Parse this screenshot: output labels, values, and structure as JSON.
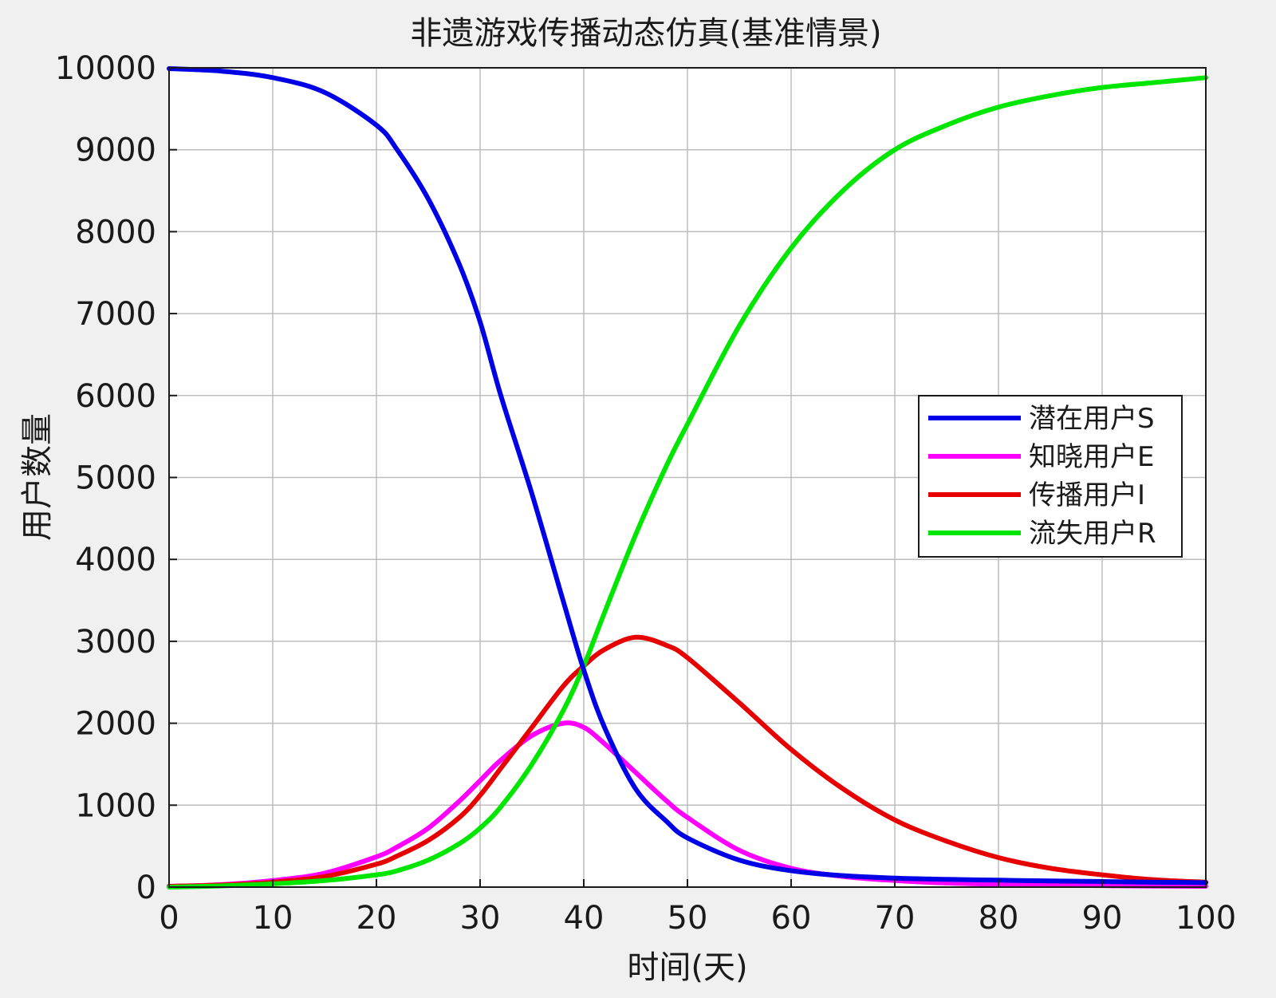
{
  "chart_data": {
    "type": "line",
    "title": "非遗游戏传播动态仿真(基准情景)",
    "xlabel": "时间(天)",
    "ylabel": "用户数量",
    "xlim": [
      0,
      100
    ],
    "ylim": [
      0,
      10000
    ],
    "xticks": [
      0,
      10,
      20,
      30,
      40,
      50,
      60,
      70,
      80,
      90,
      100
    ],
    "yticks": [
      0,
      1000,
      2000,
      3000,
      4000,
      5000,
      6000,
      7000,
      8000,
      9000,
      10000
    ],
    "grid": true,
    "legend_position": "right",
    "x": [
      0,
      5,
      10,
      15,
      20,
      22,
      25,
      28,
      30,
      32,
      35,
      38,
      40,
      42,
      45,
      48,
      50,
      55,
      60,
      65,
      70,
      75,
      80,
      85,
      90,
      95,
      100
    ],
    "series": [
      {
        "name": "潜在用户S",
        "color": "#0000e6",
        "values": [
          9990,
          9960,
          9880,
          9700,
          9300,
          9000,
          8400,
          7600,
          6900,
          6000,
          4800,
          3500,
          2650,
          1950,
          1200,
          800,
          600,
          330,
          200,
          140,
          110,
          95,
          85,
          75,
          68,
          60,
          55
        ]
      },
      {
        "name": "知晓用户E",
        "color": "#ff00ff",
        "values": [
          10,
          30,
          80,
          170,
          370,
          490,
          720,
          1050,
          1300,
          1550,
          1850,
          2000,
          1950,
          1750,
          1400,
          1050,
          850,
          450,
          230,
          130,
          80,
          50,
          35,
          25,
          18,
          12,
          10
        ]
      },
      {
        "name": "传播用户I",
        "color": "#e60000",
        "values": [
          10,
          25,
          60,
          130,
          280,
          380,
          570,
          850,
          1120,
          1450,
          1950,
          2450,
          2700,
          2900,
          3050,
          2950,
          2800,
          2250,
          1680,
          1200,
          820,
          560,
          360,
          230,
          150,
          90,
          60
        ]
      },
      {
        "name": "流失用户R",
        "color": "#00e600",
        "values": [
          0,
          15,
          40,
          80,
          150,
          200,
          330,
          530,
          720,
          980,
          1500,
          2150,
          2700,
          3350,
          4300,
          5150,
          5650,
          6850,
          7800,
          8500,
          9000,
          9300,
          9520,
          9660,
          9760,
          9820,
          9880
        ]
      }
    ]
  }
}
